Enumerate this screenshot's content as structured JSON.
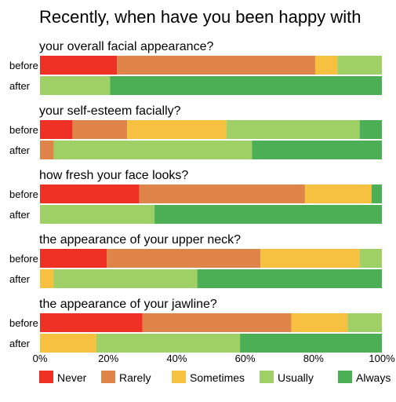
{
  "chart_data": {
    "type": "bar",
    "orientation": "horizontal",
    "stacked": true,
    "percent": true,
    "title": "Recently, when have you been happy with",
    "xlabel": "",
    "ylabel": "",
    "xlim": [
      0,
      100
    ],
    "x_ticks": [
      "0%",
      "20%",
      "40%",
      "60%",
      "80%",
      "100%"
    ],
    "grid": false,
    "legend_position": "bottom",
    "categories": [
      "Never",
      "Rarely",
      "Sometimes",
      "Usually",
      "Always"
    ],
    "colors": [
      "#ee3124",
      "#e0854a",
      "#f6c140",
      "#9fd065",
      "#4caf55"
    ],
    "groups": [
      {
        "question": "your overall facial appearance?",
        "bars": [
          {
            "label": "before",
            "values": [
              22.5,
              58,
              6.5,
              13,
              0
            ]
          },
          {
            "label": "after",
            "values": [
              0,
              0,
              0,
              20.5,
              79.5
            ]
          }
        ]
      },
      {
        "question": "your self-esteem facially?",
        "bars": [
          {
            "label": "before",
            "values": [
              9.5,
              16,
              29,
              39,
              6.5
            ]
          },
          {
            "label": "after",
            "values": [
              0,
              4,
              0,
              58,
              38
            ]
          }
        ]
      },
      {
        "question": "how fresh your face looks?",
        "bars": [
          {
            "label": "before",
            "values": [
              29,
              48.5,
              19.5,
              0,
              3
            ]
          },
          {
            "label": "after",
            "values": [
              0,
              0,
              0,
              33.5,
              66.5
            ]
          }
        ]
      },
      {
        "question": "the appearance of your upper neck?",
        "bars": [
          {
            "label": "before",
            "values": [
              19.5,
              45,
              29,
              6.5,
              0
            ]
          },
          {
            "label": "after",
            "values": [
              0,
              0,
              4,
              42,
              54
            ]
          }
        ]
      },
      {
        "question": "the appearance of your jawline?",
        "bars": [
          {
            "label": "before",
            "values": [
              30,
              43.5,
              16.5,
              10,
              0
            ]
          },
          {
            "label": "after",
            "values": [
              0,
              0,
              16.5,
              42,
              41.5
            ]
          }
        ]
      }
    ]
  }
}
